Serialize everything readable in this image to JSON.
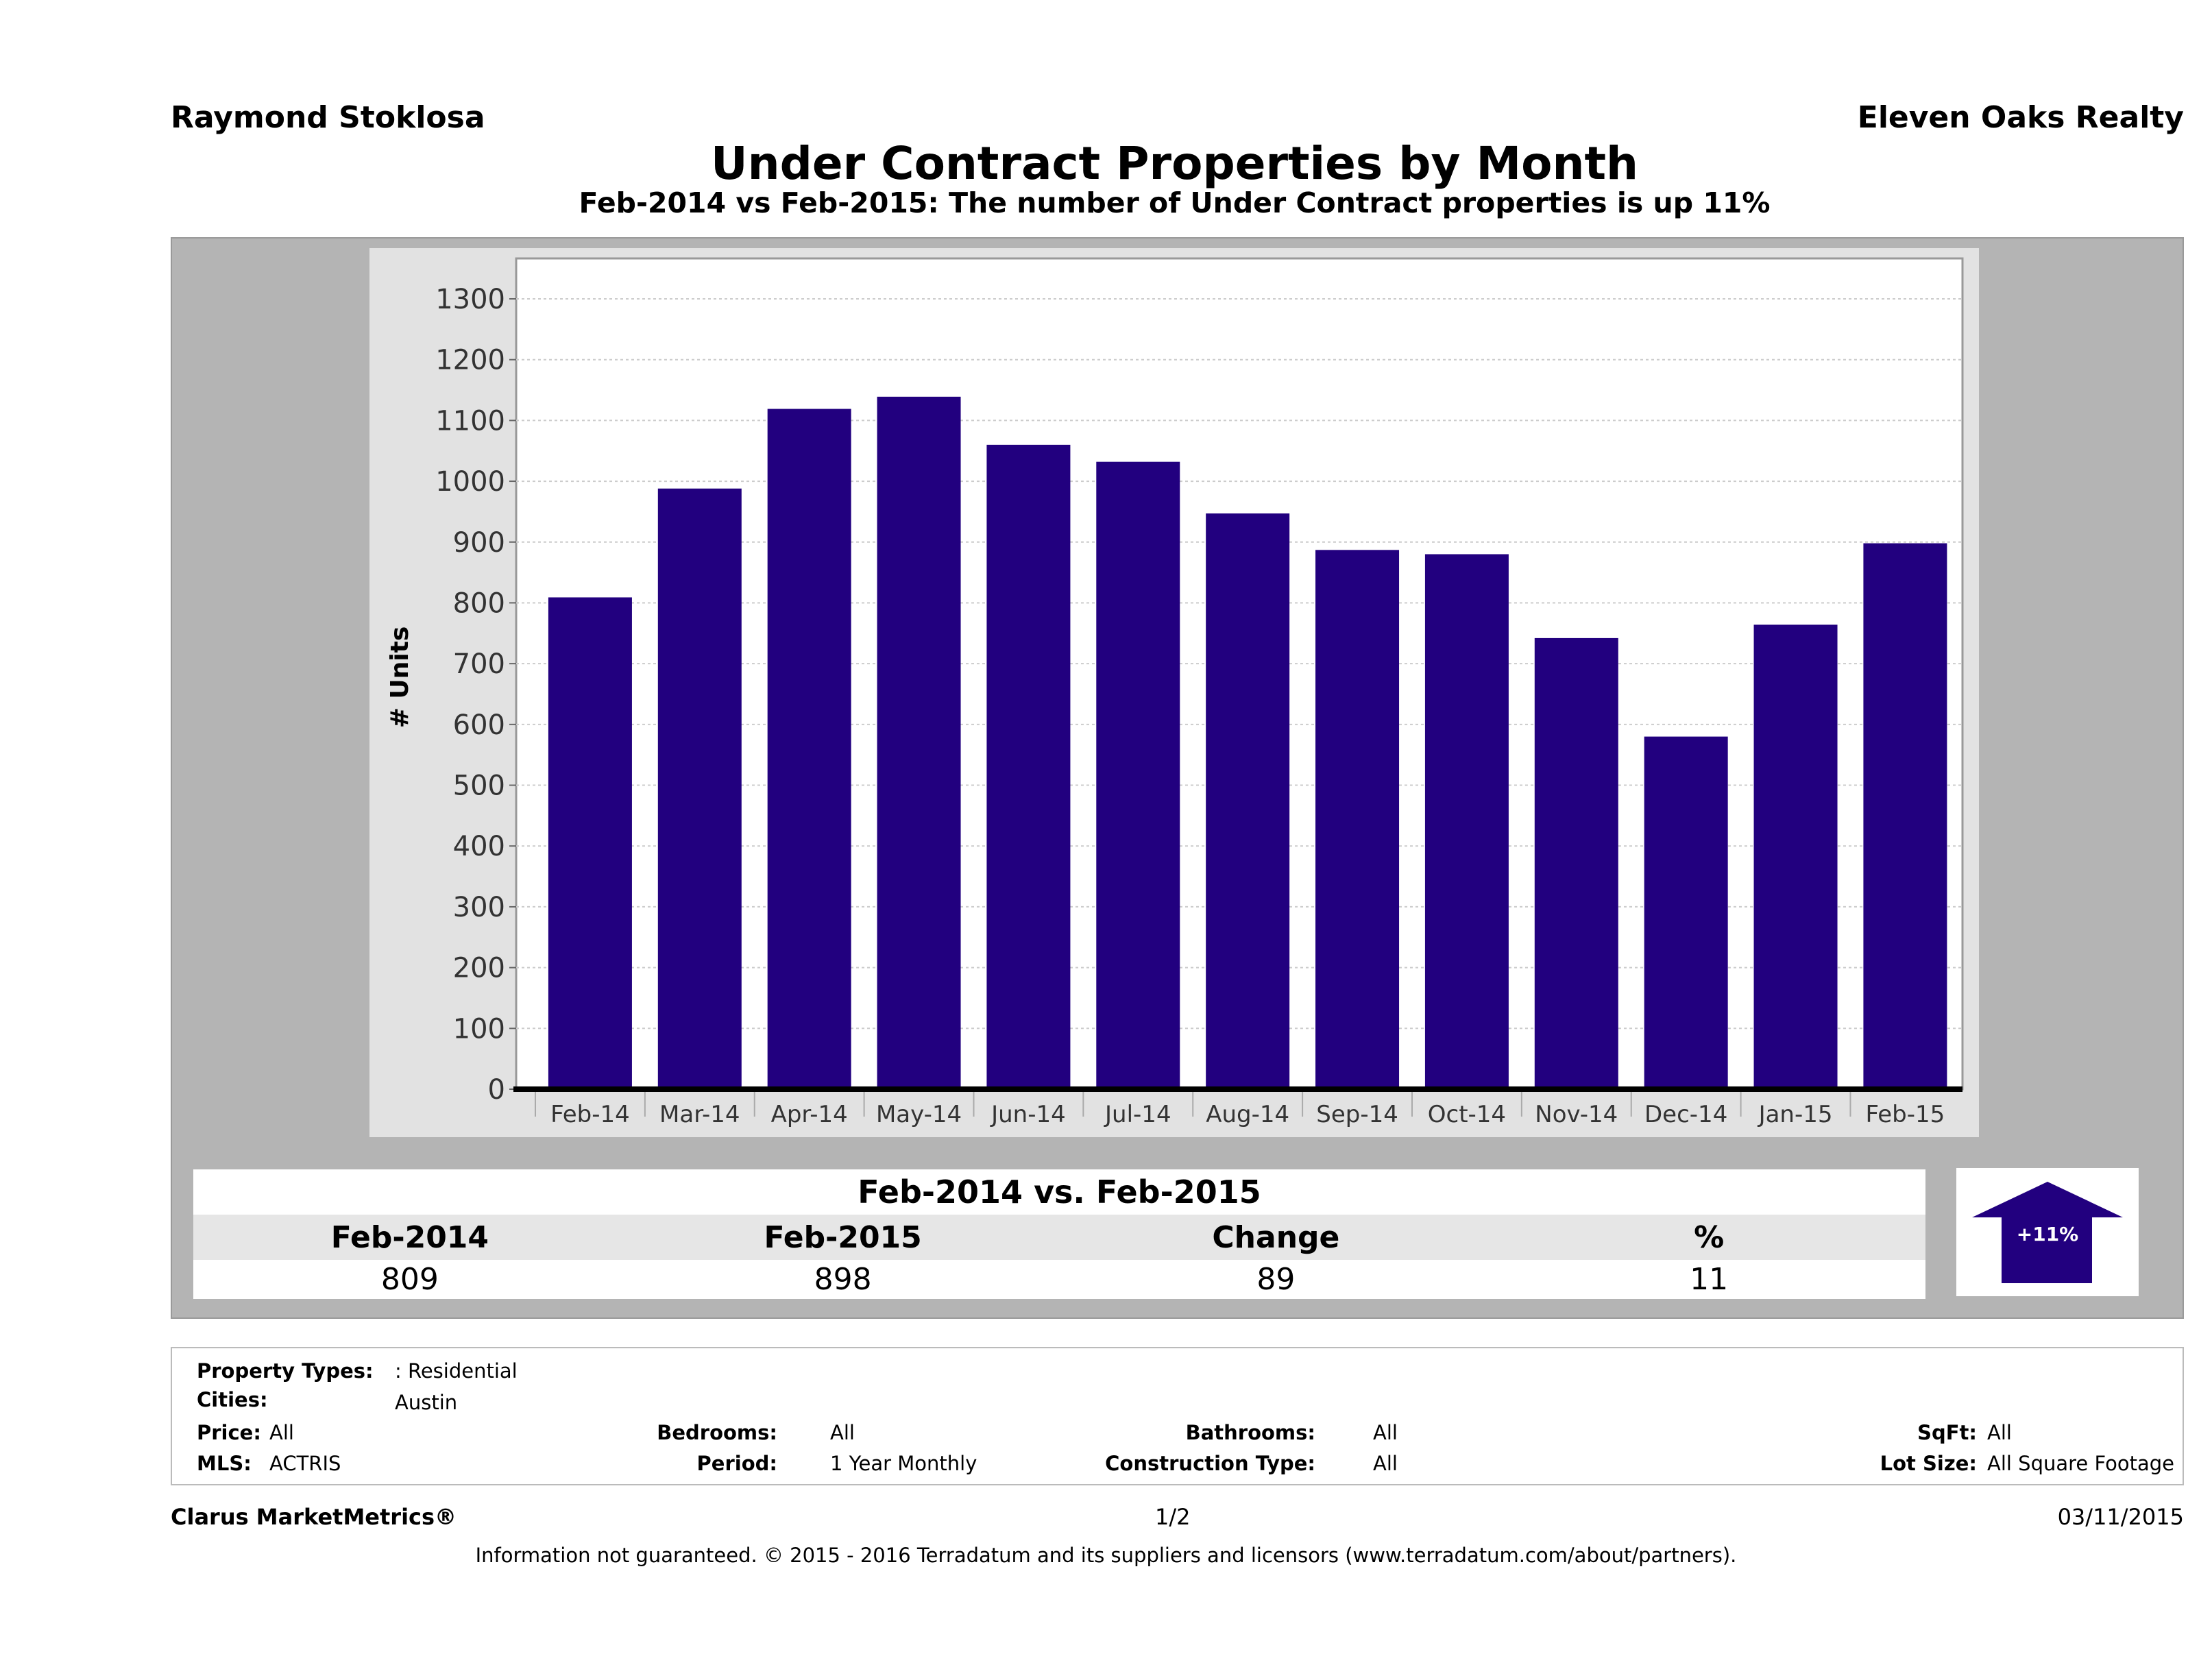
{
  "header": {
    "agent": "Raymond Stoklosa",
    "company": "Eleven Oaks Realty",
    "title": "Under Contract Properties by Month",
    "subtitle": "Feb-2014 vs Feb-2015: The number of Under Contract  properties is up 11%"
  },
  "chart_data": {
    "type": "bar",
    "title": "",
    "xlabel": "",
    "ylabel": "# Units",
    "ylim": [
      0,
      1300
    ],
    "yticks": [
      0,
      100,
      200,
      300,
      400,
      500,
      600,
      700,
      800,
      900,
      1000,
      1100,
      1200,
      1300
    ],
    "grid": true,
    "categories": [
      "Feb-14",
      "Mar-14",
      "Apr-14",
      "May-14",
      "Jun-14",
      "Jul-14",
      "Aug-14",
      "Sep-14",
      "Oct-14",
      "Nov-14",
      "Dec-14",
      "Jan-15",
      "Feb-15"
    ],
    "values": [
      809,
      988,
      1119,
      1139,
      1060,
      1032,
      947,
      887,
      880,
      742,
      580,
      764,
      898
    ],
    "bar_color": "#22007f"
  },
  "summary": {
    "heading": "Feb-2014 vs. Feb-2015",
    "columns": [
      "Feb-2014",
      "Feb-2015",
      "Change",
      "%"
    ],
    "values": [
      "809",
      "898",
      "89",
      "11"
    ],
    "badge": "+11%",
    "badge_direction": "up",
    "badge_color": "#22007f"
  },
  "filters": {
    "property_types_label": "Property Types:",
    "property_types": ": Residential",
    "cities_label": "Cities:",
    "cities": "Austin",
    "price_label": "Price:",
    "price": "All",
    "mls_label": "MLS:",
    "mls": "ACTRIS",
    "bedrooms_label": "Bedrooms:",
    "bedrooms": "All",
    "period_label": "Period:",
    "period": "1 Year Monthly",
    "bathrooms_label": "Bathrooms:",
    "bathrooms": "All",
    "construction_label": "Construction Type:",
    "construction": "All",
    "sqft_label": "SqFt:",
    "sqft": "All",
    "lot_label": "Lot Size:",
    "lot": "All Square Footage"
  },
  "footer": {
    "brand": "Clarus MarketMetrics®",
    "page": "1/2",
    "date": "03/11/2015",
    "disclaimer": "Information not guaranteed. © 2015 - 2016 Terradatum and its suppliers and licensors (www.terradatum.com/about/partners)."
  }
}
